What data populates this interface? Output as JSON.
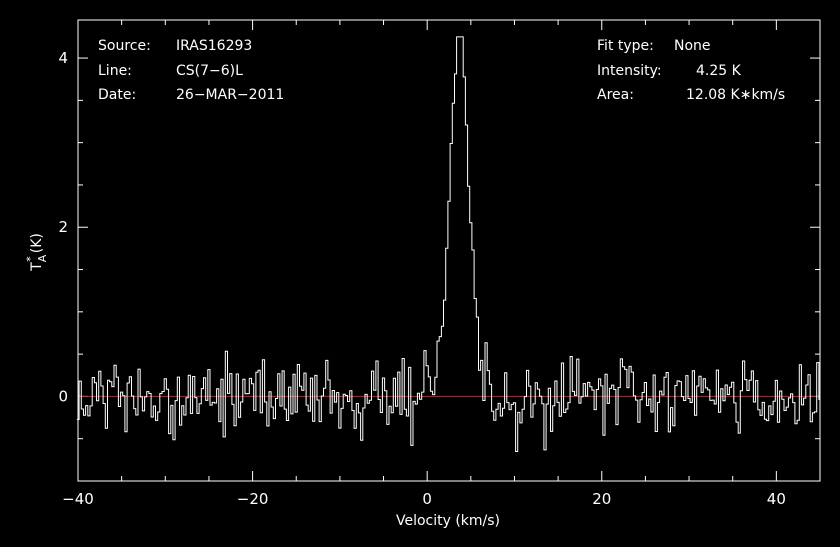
{
  "chart_data": {
    "type": "line",
    "xlabel": "Velocity (km/s)",
    "ylabel": "T",
    "ylabel_sub": "A",
    "ylabel_sup": "*",
    "ylabel_unit": "(K)",
    "xlim": [
      -40,
      45
    ],
    "ylim": [
      -1.0,
      4.45
    ],
    "xticks": [
      -40,
      -20,
      0,
      20,
      40
    ],
    "xtick_labels": [
      "−40",
      "−20",
      "0",
      "20",
      "40"
    ],
    "yticks": [
      0,
      2,
      4
    ],
    "ytick_labels": [
      "0",
      "2",
      "4"
    ],
    "grid": false,
    "baseline": 0,
    "colors": {
      "background": "#000000",
      "trace": "#ffffff",
      "baseline": "#cc2222",
      "frame": "#ffffff"
    },
    "info_left": [
      {
        "key": "Source:",
        "value": "IRAS16293"
      },
      {
        "key": "Line:",
        "value": "CS(7−6)L"
      },
      {
        "key": "Date:",
        "value": "26−MAR−2011"
      }
    ],
    "info_right": [
      {
        "key": "Fit type:",
        "value": "None"
      },
      {
        "key": "Intensity:",
        "value": "4.25 K"
      },
      {
        "key": "Area:",
        "value": "12.08 K∗km/s"
      }
    ],
    "line_peak": {
      "velocity": 3.7,
      "intensity": 4.25,
      "fwhm": 2.6
    },
    "noise_rms": 0.23,
    "channel_width": 0.25
  }
}
